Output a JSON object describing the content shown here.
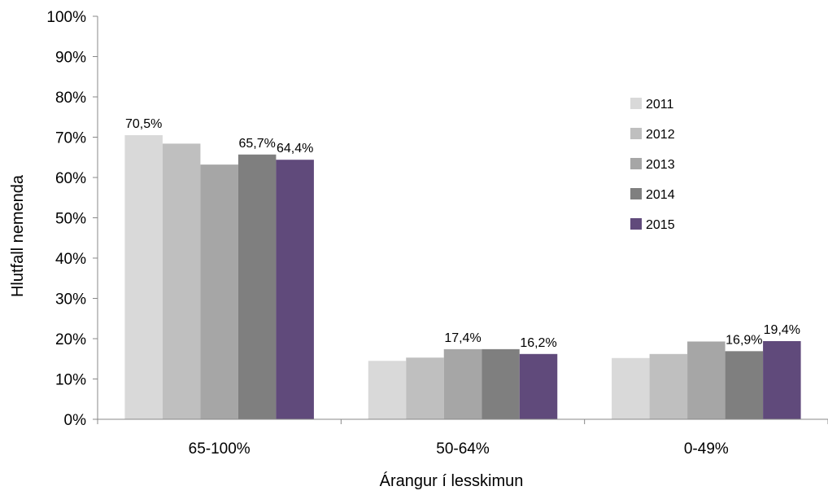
{
  "chart_data": {
    "type": "bar",
    "title": "",
    "xlabel": "Árangur í lesskimun",
    "ylabel": "Hlutfall nemenda",
    "ylim": [
      0,
      100
    ],
    "yticks": [
      "0%",
      "10%",
      "20%",
      "30%",
      "40%",
      "50%",
      "60%",
      "70%",
      "80%",
      "90%",
      "100%"
    ],
    "categories": [
      "65-100%",
      "50-64%",
      "0-49%"
    ],
    "legend_position": "right",
    "grid": false,
    "series": [
      {
        "name": "2011",
        "color": "#d9d9d9",
        "values": [
          70.5,
          14.5,
          15.2
        ],
        "labels": [
          "70,5%",
          "",
          ""
        ]
      },
      {
        "name": "2012",
        "color": "#bfbfbf",
        "values": [
          68.4,
          15.3,
          16.2
        ],
        "labels": [
          "",
          "",
          ""
        ]
      },
      {
        "name": "2013",
        "color": "#a6a6a6",
        "values": [
          63.2,
          17.4,
          19.3
        ],
        "labels": [
          "",
          "17,4%",
          ""
        ]
      },
      {
        "name": "2014",
        "color": "#7f7f7f",
        "values": [
          65.7,
          17.4,
          16.9
        ],
        "labels": [
          "65,7%",
          "",
          "16,9%"
        ]
      },
      {
        "name": "2015",
        "color": "#604a7b",
        "values": [
          64.4,
          16.2,
          19.4
        ],
        "labels": [
          "64,4%",
          "16,2%",
          "19,4%"
        ]
      }
    ]
  }
}
